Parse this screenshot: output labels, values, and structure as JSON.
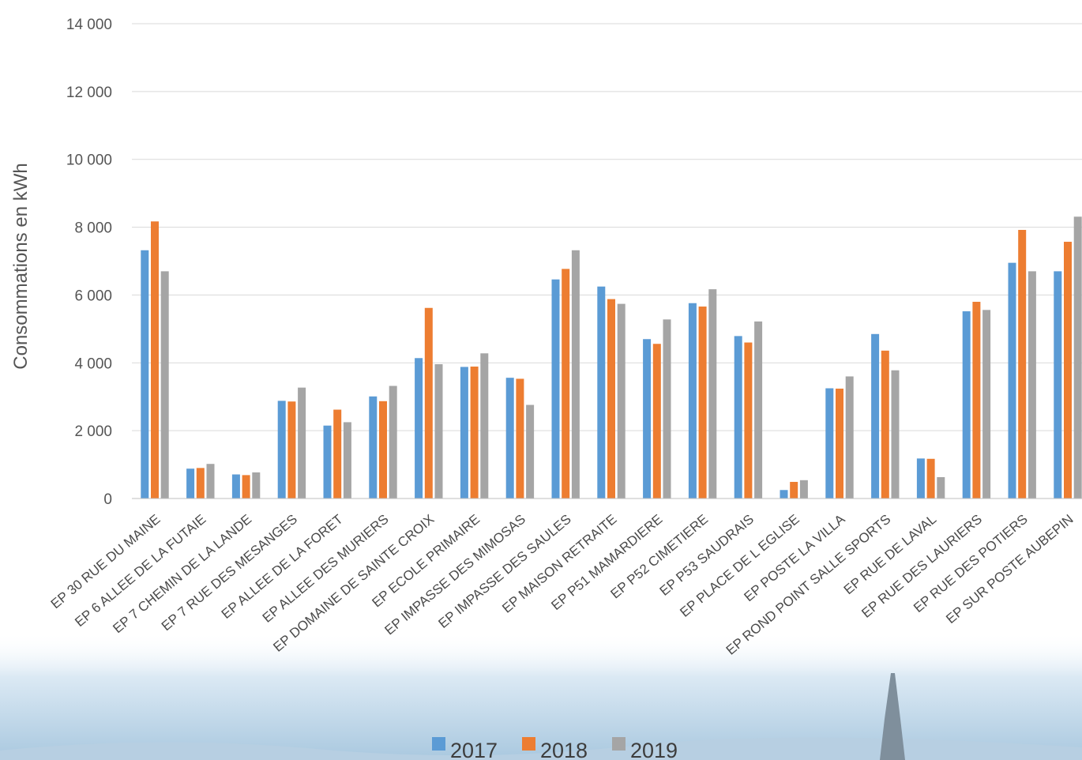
{
  "chart_data": {
    "type": "bar",
    "ylabel": "Consommations en kWh",
    "ylim": [
      0,
      14000
    ],
    "yticks": [
      0,
      2000,
      4000,
      6000,
      8000,
      10000,
      12000,
      14000
    ],
    "ytick_labels": [
      "0",
      "2 000",
      "4 000",
      "6 000",
      "8 000",
      "10 000",
      "12 000",
      "14 000"
    ],
    "grid": true,
    "legend_position": "bottom",
    "categories": [
      "EP 30 RUE DU MAINE",
      "EP 6 ALLEE DE LA FUTAIE",
      "EP 7 CHEMIN DE LA LANDE",
      "EP 7 RUE DES MESANGES",
      "EP ALLEE DE LA FORET",
      "EP ALLEE DES MURIERS",
      "EP DOMAINE DE SAINTE CROIX",
      "EP ECOLE PRIMAIRE",
      "EP IMPASSE DES MIMOSAS",
      "EP IMPASSE DES SAULES",
      "EP MAISON RETRAITE",
      "EP P51 MAMARDIERE",
      "EP P52 CIMETIERE",
      "EP P53 SAUDRAIS",
      "EP PLACE DE L EGLISE",
      "EP POSTE LA VILLA",
      "EP ROND POINT SALLE SPORTS",
      "EP RUE DE LAVAL",
      "EP RUE DES LAURIERS",
      "EP RUE DES POTIERS",
      "EP SUR POSTE AUBEPIN"
    ],
    "series": [
      {
        "name": "2017",
        "color": "#5b9bd5",
        "values": [
          7320,
          880,
          710,
          2880,
          2150,
          3010,
          4140,
          3880,
          3560,
          6460,
          6250,
          4700,
          5760,
          4790,
          250,
          3250,
          4850,
          1180,
          5520,
          6950,
          6700
        ]
      },
      {
        "name": "2018",
        "color": "#ed7d31",
        "values": [
          8170,
          900,
          690,
          2860,
          2620,
          2870,
          5620,
          3890,
          3530,
          6770,
          5880,
          4560,
          5660,
          4600,
          490,
          3240,
          4360,
          1170,
          5800,
          7920,
          7570
        ]
      },
      {
        "name": "2019",
        "color": "#a5a5a5",
        "values": [
          6700,
          1020,
          770,
          3270,
          2250,
          3320,
          3960,
          4280,
          2760,
          7320,
          5740,
          5280,
          6170,
          5220,
          540,
          3600,
          3780,
          630,
          5560,
          6700,
          8310
        ]
      }
    ]
  }
}
